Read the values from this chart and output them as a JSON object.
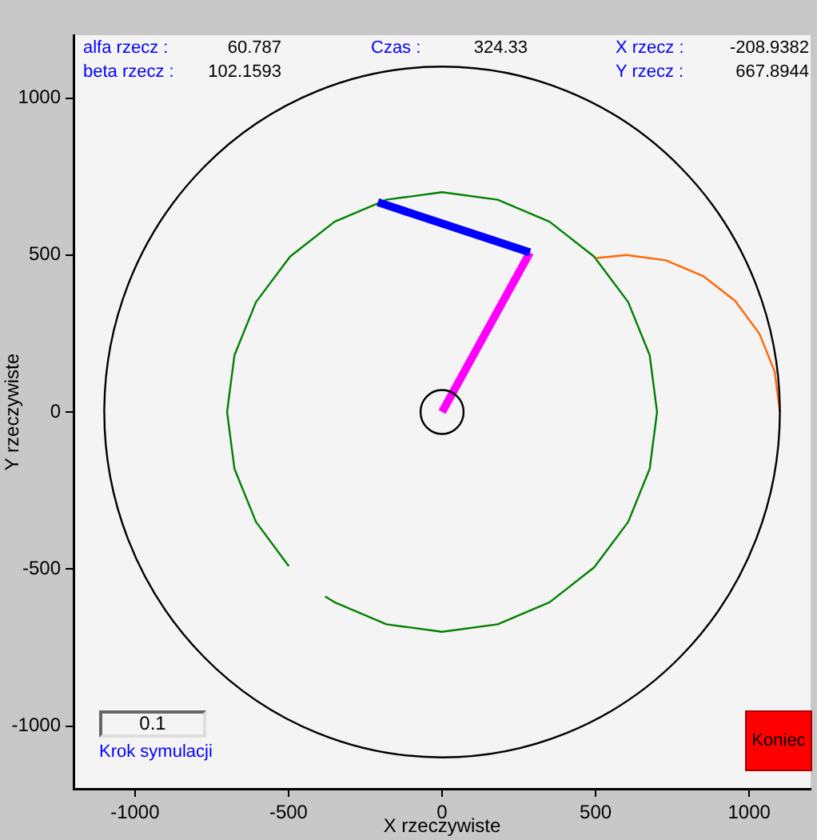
{
  "chart_data": {
    "type": "line",
    "xlabel": "X rzeczywiste",
    "ylabel": "Y rzeczywiste",
    "xlim": [
      -1200,
      1200
    ],
    "ylim": [
      -1200,
      1200
    ],
    "xticks": [
      -1000,
      -500,
      0,
      500,
      1000
    ],
    "yticks": [
      -1000,
      -500,
      0,
      500,
      1000
    ],
    "series": [
      {
        "color": "#008000",
        "x": [
          -381,
          -350,
          -181,
          0,
          181,
          350,
          495,
          606,
          676,
          700,
          676,
          606,
          495,
          350,
          181,
          0,
          -181,
          -350,
          -495,
          -606,
          -676,
          -700,
          -676,
          -606,
          -499
        ],
        "values": [
          -587,
          -606,
          -676,
          -700,
          -676,
          -606,
          -495,
          -350,
          -181,
          0,
          181,
          350,
          495,
          606,
          676,
          700,
          676,
          606,
          495,
          350,
          181,
          0,
          -181,
          -350,
          -491
        ]
      },
      {
        "color": "#ff6600",
        "x": [
          1100,
          1083,
          1033,
          954,
          850,
          729,
          600,
          500
        ],
        "values": [
          0,
          129,
          250,
          354,
          433,
          483,
          500,
          490
        ]
      },
      {
        "color": "#ff00ff",
        "x": [
          0,
          286
        ],
        "values": [
          0,
          508
        ]
      },
      {
        "color": "#0000ff",
        "x": [
          286,
          -209
        ],
        "values": [
          508,
          668
        ]
      }
    ],
    "annotations": [
      "alfa rzecz :",
      "60.787",
      "beta rzecz :",
      "102.1593",
      "Czas :",
      "324.33",
      "X rzecz :",
      "-208.9382",
      "Y rzecz :",
      "667.8944",
      "0.1",
      "Krok symulacji",
      "Koniec"
    ]
  }
}
